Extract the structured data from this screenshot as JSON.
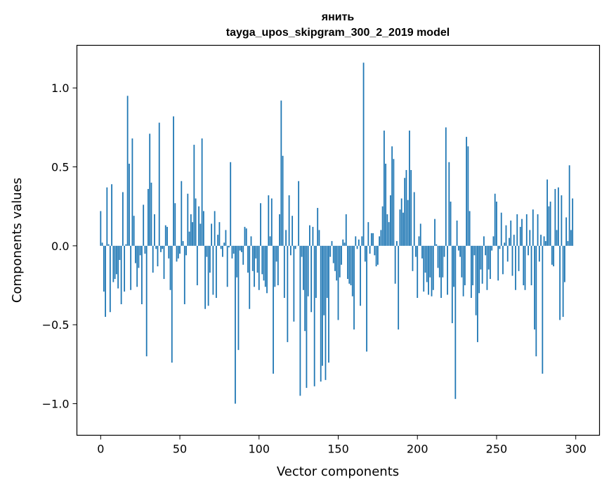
{
  "chart_data": {
    "type": "bar",
    "title": "янить",
    "subtitle": "tayga_upos_skipgram_300_2_2019 model",
    "xlabel": "Vector components",
    "ylabel": "Components values",
    "xlim": [
      -15,
      315
    ],
    "ylim": [
      -1.2,
      1.27
    ],
    "xticks": [
      0,
      50,
      100,
      150,
      200,
      250,
      300
    ],
    "xtick_labels": [
      "0",
      "50",
      "100",
      "150",
      "200",
      "250",
      "300"
    ],
    "yticks": [
      -1.0,
      -0.5,
      0.0,
      0.5,
      1.0
    ],
    "ytick_labels": [
      "−1.0",
      "−0.5",
      "0.0",
      "0.5",
      "1.0"
    ],
    "bar_color": "#1f77b4",
    "values": [
      0.22,
      0.02,
      -0.29,
      -0.45,
      0.37,
      0.01,
      -0.42,
      0.39,
      -0.23,
      -0.21,
      -0.18,
      -0.27,
      -0.09,
      -0.37,
      0.34,
      -0.29,
      0.01,
      0.95,
      0.52,
      -0.28,
      0.68,
      0.19,
      -0.11,
      -0.26,
      -0.14,
      -0.06,
      -0.37,
      0.26,
      -0.05,
      -0.7,
      0.36,
      0.71,
      0.4,
      -0.17,
      0.2,
      -0.02,
      -0.13,
      0.78,
      -0.04,
      -0.02,
      -0.21,
      0.13,
      0.12,
      -0.08,
      -0.28,
      -0.74,
      0.82,
      0.27,
      -0.1,
      -0.08,
      -0.05,
      0.41,
      0.03,
      -0.37,
      -0.06,
      0.33,
      0.09,
      0.2,
      0.15,
      0.64,
      0.3,
      -0.25,
      0.25,
      0.14,
      0.68,
      0.22,
      -0.4,
      -0.07,
      -0.38,
      -0.17,
      0.14,
      -0.31,
      0.22,
      -0.33,
      0.07,
      0.15,
      -0.02,
      -0.07,
      0.02,
      0.1,
      -0.26,
      -0.01,
      0.53,
      -0.08,
      -0.05,
      -1.0,
      -0.2,
      -0.66,
      -0.03,
      -0.04,
      -0.12,
      0.12,
      0.11,
      -0.17,
      -0.4,
      0.06,
      -0.16,
      -0.26,
      -0.08,
      -0.17,
      -0.28,
      0.27,
      -0.18,
      -0.22,
      -0.26,
      -0.3,
      0.32,
      0.06,
      0.3,
      -0.81,
      -0.26,
      -0.1,
      -0.25,
      0.2,
      0.92,
      0.57,
      -0.33,
      0.1,
      -0.61,
      0.32,
      -0.06,
      0.19,
      -0.48,
      -0.02,
      0.0,
      0.41,
      -0.95,
      -0.07,
      -0.28,
      -0.54,
      -0.9,
      -0.32,
      0.13,
      -0.42,
      0.12,
      -0.89,
      -0.33,
      0.24,
      0.1,
      -0.86,
      -0.76,
      -0.44,
      -0.85,
      -0.33,
      -0.74,
      -0.07,
      0.03,
      -0.11,
      -0.16,
      -0.22,
      -0.47,
      -0.2,
      -0.12,
      0.04,
      0.02,
      0.2,
      -0.21,
      -0.24,
      -0.25,
      -0.32,
      -0.53,
      0.06,
      -0.02,
      0.04,
      -0.38,
      0.06,
      1.16,
      -0.1,
      -0.67,
      0.15,
      -0.05,
      0.08,
      0.08,
      -0.06,
      -0.13,
      -0.12,
      0.06,
      0.1,
      0.25,
      0.73,
      0.52,
      0.2,
      0.15,
      0.32,
      0.63,
      0.55,
      -0.24,
      0.03,
      -0.53,
      0.23,
      0.3,
      0.21,
      0.43,
      0.48,
      0.29,
      0.73,
      0.48,
      -0.16,
      0.34,
      -0.07,
      -0.33,
      0.06,
      0.14,
      -0.08,
      -0.29,
      -0.17,
      -0.23,
      -0.31,
      -0.2,
      -0.32,
      -0.28,
      0.17,
      0.01,
      -0.14,
      -0.2,
      -0.33,
      -0.2,
      -0.07,
      0.75,
      -0.31,
      0.53,
      0.28,
      -0.49,
      -0.26,
      -0.97,
      0.16,
      -0.03,
      -0.07,
      -0.2,
      -0.32,
      -0.25,
      0.69,
      0.63,
      0.22,
      -0.33,
      -0.25,
      -0.06,
      -0.44,
      -0.61,
      -0.3,
      -0.15,
      -0.24,
      0.06,
      -0.06,
      -0.28,
      -0.15,
      -0.21,
      -0.03,
      0.06,
      0.33,
      0.28,
      -0.22,
      -0.02,
      0.21,
      -0.18,
      0.02,
      0.13,
      -0.1,
      0.05,
      0.16,
      -0.19,
      0.07,
      -0.28,
      0.2,
      -0.16,
      0.12,
      0.17,
      -0.25,
      -0.28,
      0.2,
      -0.06,
      0.1,
      -0.25,
      0.23,
      -0.53,
      -0.7,
      0.2,
      -0.1,
      0.07,
      -0.81,
      0.06,
      0.03,
      0.42,
      0.25,
      0.28,
      -0.12,
      -0.13,
      0.36,
      0.1,
      0.37,
      -0.47,
      0.32,
      -0.45,
      -0.23,
      0.18,
      0.03,
      0.51,
      0.1,
      0.3
    ]
  }
}
